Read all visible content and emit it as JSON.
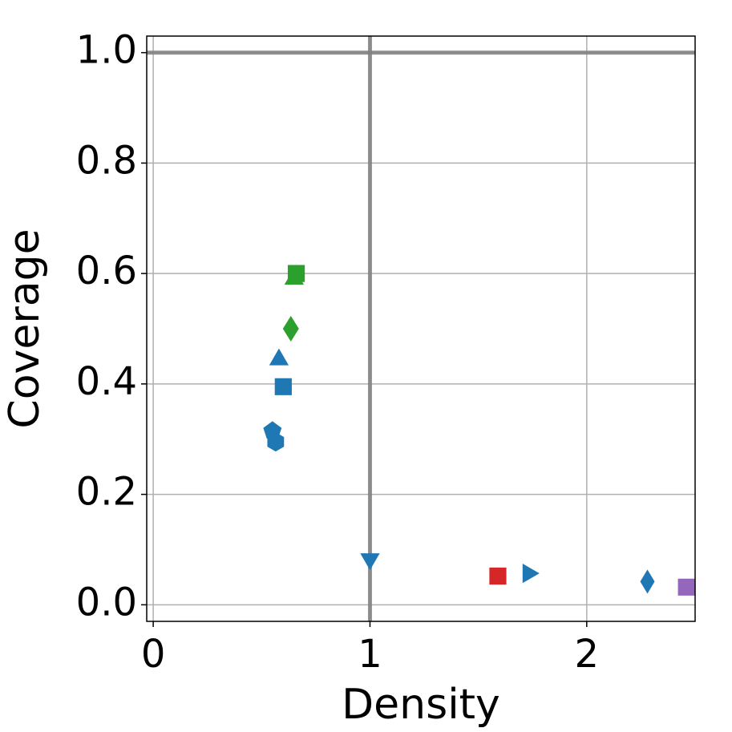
{
  "chart_data": {
    "type": "scatter",
    "x_label": "Density",
    "y_label": "Coverage",
    "x": [
      0.66,
      0.65,
      0.635,
      0.58,
      0.6,
      0.55,
      0.565,
      1.0,
      1.59,
      1.73,
      2.28,
      2.46
    ],
    "values": [
      0.6,
      0.59,
      0.5,
      0.444,
      0.395,
      0.315,
      0.295,
      0.083,
      0.052,
      0.057,
      0.042,
      0.032
    ],
    "colors": [
      "#2ca02c",
      "#2ca02c",
      "#2ca02c",
      "#1f77b4",
      "#1f77b4",
      "#1f77b4",
      "#1f77b4",
      "#1f77b4",
      "#d62728",
      "#1f77b4",
      "#1f77b4",
      "#9467bd"
    ],
    "markers": [
      "square",
      "triangle-up",
      "diamond",
      "triangle-up",
      "square",
      "pentagon",
      "hexagon",
      "triangle-down",
      "square",
      "triangle-right",
      "thin-diamond",
      "square"
    ],
    "xlim": [
      -0.03,
      2.5
    ],
    "ylim": [
      -0.03,
      1.03
    ],
    "xticks": [
      0,
      1,
      2
    ],
    "yticks": [
      {
        "value": 0,
        "label": "0.0"
      },
      {
        "value": 0.2,
        "label": "0.2"
      },
      {
        "value": 0.4,
        "label": "0.4"
      },
      {
        "value": 0.6,
        "label": "0.6"
      },
      {
        "value": 0.8,
        "label": "0.8"
      },
      {
        "value": 1,
        "label": "1.0"
      }
    ],
    "hlines": [
      1
    ],
    "vlines": [
      1
    ],
    "grid": true
  }
}
